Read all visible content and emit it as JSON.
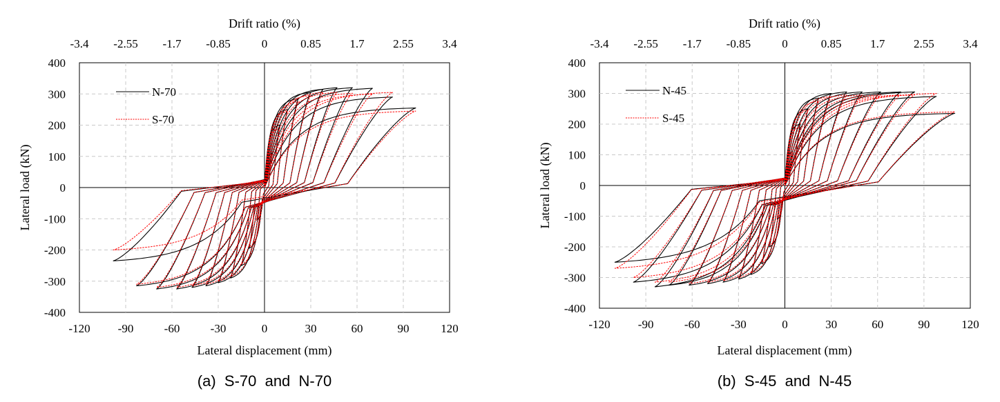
{
  "chart_data": [
    {
      "type": "line",
      "caption": "(a)  S-70  and  N-70",
      "xlabel": "Lateral displacement (mm)",
      "ylabel": "Lateral load (kN)",
      "top_xlabel": "Drift ratio (%)",
      "xlim": [
        -120,
        120
      ],
      "ylim": [
        -400,
        400
      ],
      "xticks": [
        -120,
        -90,
        -60,
        -30,
        0,
        30,
        60,
        90,
        120
      ],
      "yticks": [
        -400,
        -300,
        -200,
        -100,
        0,
        100,
        200,
        300,
        400
      ],
      "top_ticks": [
        "-3.4",
        "-2.55",
        "-1.7",
        "-0.85",
        "0",
        "0.85",
        "1.7",
        "2.55",
        "3.4"
      ],
      "grid": true,
      "legend_position": "top-left",
      "series": [
        {
          "name": "N-70",
          "color": "#000000",
          "style": "solid",
          "cycles": [
            {
              "d": 5,
              "p": 110,
              "n": -105
            },
            {
              "d": 10,
              "p": 200,
              "n": -195
            },
            {
              "d": 15,
              "p": 250,
              "n": -250
            },
            {
              "d": 22,
              "p": 285,
              "n": -290
            },
            {
              "d": 30,
              "p": 305,
              "n": -305
            },
            {
              "d": 38,
              "p": 315,
              "n": -315
            },
            {
              "d": 47,
              "p": 320,
              "n": -320
            },
            {
              "d": 57,
              "p": 320,
              "n": -325
            },
            {
              "d": 70,
              "p": 318,
              "n": -325
            },
            {
              "d": 83,
              "p": 290,
              "n": -315
            },
            {
              "d": 98,
              "p": 255,
              "n": -235
            }
          ]
        },
        {
          "name": "S-70",
          "color": "#ff0000",
          "style": "dashed",
          "cycles": [
            {
              "d": 5,
              "p": 105,
              "n": -100
            },
            {
              "d": 10,
              "p": 190,
              "n": -190
            },
            {
              "d": 15,
              "p": 245,
              "n": -245
            },
            {
              "d": 22,
              "p": 275,
              "n": -285
            },
            {
              "d": 30,
              "p": 295,
              "n": -300
            },
            {
              "d": 38,
              "p": 305,
              "n": -310
            },
            {
              "d": 47,
              "p": 305,
              "n": -315
            },
            {
              "d": 57,
              "p": 302,
              "n": -320
            },
            {
              "d": 70,
              "p": 300,
              "n": -320
            },
            {
              "d": 83,
              "p": 305,
              "n": -310
            },
            {
              "d": 98,
              "p": 245,
              "n": -200
            }
          ]
        }
      ]
    },
    {
      "type": "line",
      "caption": "(b)  S-45  and  N-45",
      "xlabel": "Lateral displacement (mm)",
      "ylabel": "Lateral load (kN)",
      "top_xlabel": "Drift ratio (%)",
      "xlim": [
        -120,
        120
      ],
      "ylim": [
        -400,
        400
      ],
      "xticks": [
        -120,
        -90,
        -60,
        -30,
        0,
        30,
        60,
        90,
        120
      ],
      "yticks": [
        -400,
        -300,
        -200,
        -100,
        0,
        100,
        200,
        300,
        400
      ],
      "top_ticks": [
        "-3.4",
        "-2.55",
        "-1.7",
        "-0.85",
        "0",
        "0.85",
        "1.7",
        "2.55",
        "3.4"
      ],
      "grid": true,
      "legend_position": "top-left",
      "series": [
        {
          "name": "N-45",
          "color": "#000000",
          "style": "solid",
          "cycles": [
            {
              "d": 5,
              "p": 110,
              "n": -110
            },
            {
              "d": 10,
              "p": 200,
              "n": -200
            },
            {
              "d": 15,
              "p": 250,
              "n": -255
            },
            {
              "d": 22,
              "p": 285,
              "n": -290
            },
            {
              "d": 30,
              "p": 300,
              "n": -305
            },
            {
              "d": 40,
              "p": 305,
              "n": -315
            },
            {
              "d": 50,
              "p": 305,
              "n": -320
            },
            {
              "d": 62,
              "p": 305,
              "n": -325
            },
            {
              "d": 75,
              "p": 305,
              "n": -325
            },
            {
              "d": 84,
              "p": 305,
              "n": -330
            },
            {
              "d": 98,
              "p": 290,
              "n": -315
            },
            {
              "d": 110,
              "p": 235,
              "n": -250
            }
          ]
        },
        {
          "name": "S-45",
          "color": "#ff0000",
          "style": "dashed",
          "cycles": [
            {
              "d": 5,
              "p": 105,
              "n": -105
            },
            {
              "d": 10,
              "p": 190,
              "n": -195
            },
            {
              "d": 15,
              "p": 245,
              "n": -250
            },
            {
              "d": 22,
              "p": 275,
              "n": -285
            },
            {
              "d": 30,
              "p": 290,
              "n": -300
            },
            {
              "d": 40,
              "p": 295,
              "n": -310
            },
            {
              "d": 50,
              "p": 295,
              "n": -315
            },
            {
              "d": 62,
              "p": 295,
              "n": -320
            },
            {
              "d": 75,
              "p": 295,
              "n": -315
            },
            {
              "d": 84,
              "p": 295,
              "n": -315
            },
            {
              "d": 98,
              "p": 300,
              "n": -300
            },
            {
              "d": 110,
              "p": 240,
              "n": -270
            }
          ]
        }
      ]
    }
  ]
}
